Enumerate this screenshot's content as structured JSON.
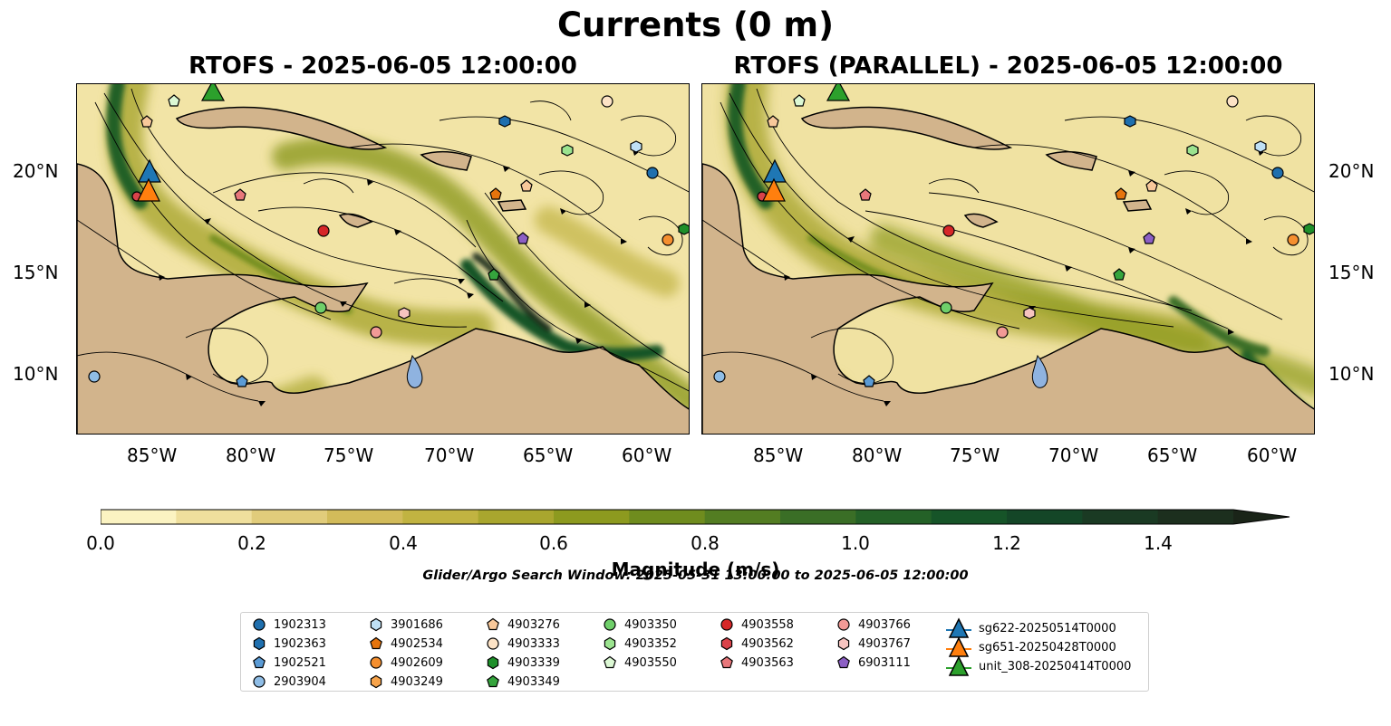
{
  "figure": {
    "suptitle": "Currents (0 m)",
    "left_title": "RTOFS - 2025-06-05 12:00:00",
    "right_title": "RTOFS (PARALLEL) - 2025-06-05 12:00:00",
    "search_window": "Glider/Argo Search Window: 2025-05-31 13:00:00 to 2025-06-05 12:00:00"
  },
  "axes": {
    "x_ticks": [
      "85°W",
      "80°W",
      "75°W",
      "70°W",
      "65°W",
      "60°W"
    ],
    "y_ticks": [
      "20°N",
      "15°N",
      "10°N"
    ]
  },
  "colorbar": {
    "label": "Magnitude (m/s)",
    "ticks": [
      "0.0",
      "0.2",
      "0.4",
      "0.6",
      "0.8",
      "1.0",
      "1.2",
      "1.4"
    ],
    "colors": [
      "#fbf3c2",
      "#efdf9d",
      "#e1cc7b",
      "#d2bb5a",
      "#c1b341",
      "#a9a62e",
      "#8d9a1f",
      "#6f8c1e",
      "#537d22",
      "#3a6e26",
      "#246127",
      "#165428",
      "#144627",
      "#1a3a23",
      "#1c2f1e",
      "#1a2418"
    ]
  },
  "legend": {
    "items": [
      {
        "label": "1902313",
        "marker": "circle",
        "color": "#1f6fae"
      },
      {
        "label": "1902363",
        "marker": "hexagon",
        "color": "#1f6fae"
      },
      {
        "label": "1902521",
        "marker": "pentagon",
        "color": "#5b9bd5"
      },
      {
        "label": "2903904",
        "marker": "circle",
        "color": "#8fbde6"
      },
      {
        "label": "3901686",
        "marker": "hexagon",
        "color": "#bfe0f5"
      },
      {
        "label": "4902534",
        "marker": "pentagon",
        "color": "#e6740c"
      },
      {
        "label": "4902609",
        "marker": "circle",
        "color": "#f58f2f"
      },
      {
        "label": "4903249",
        "marker": "hexagon",
        "color": "#f7a34a"
      },
      {
        "label": "4903276",
        "marker": "pentagon",
        "color": "#f8c89a"
      },
      {
        "label": "4903333",
        "marker": "circle",
        "color": "#fde3c6"
      },
      {
        "label": "4903339",
        "marker": "hexagon",
        "color": "#1e8f2a"
      },
      {
        "label": "4903349",
        "marker": "pentagon",
        "color": "#35a43d"
      },
      {
        "label": "4903350",
        "marker": "circle",
        "color": "#6fcf6a"
      },
      {
        "label": "4903352",
        "marker": "hexagon",
        "color": "#9be38f"
      },
      {
        "label": "4903550",
        "marker": "pentagon",
        "color": "#dcf8d4"
      },
      {
        "label": "4903558",
        "marker": "circle",
        "color": "#d62728"
      },
      {
        "label": "4903562",
        "marker": "hexagon",
        "color": "#d9434a"
      },
      {
        "label": "4903563",
        "marker": "pentagon",
        "color": "#e8777b"
      },
      {
        "label": "4903766",
        "marker": "circle",
        "color": "#f29a96"
      },
      {
        "label": "4903767",
        "marker": "hexagon",
        "color": "#f7c4c0"
      },
      {
        "label": "6903111",
        "marker": "pentagon",
        "color": "#8c5fc4"
      },
      {
        "label": "sg622-20250514T0000",
        "marker": "triangle",
        "color": "#1f77b4"
      },
      {
        "label": "sg651-20250428T0000",
        "marker": "triangle",
        "color": "#ff7f0e"
      },
      {
        "label": "unit_308-20250414T0000",
        "marker": "triangle",
        "color": "#2ca02c"
      }
    ]
  }
}
